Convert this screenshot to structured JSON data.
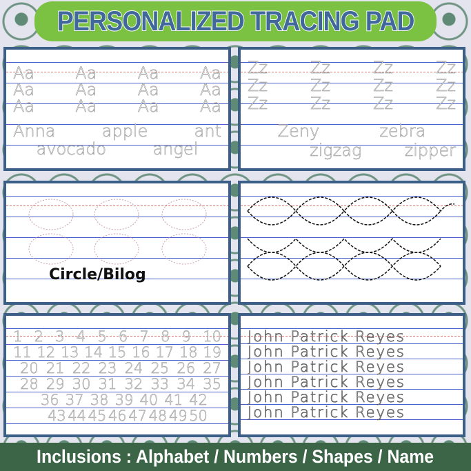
{
  "title": "PERSONALIZED TRACING PAD",
  "panels": {
    "alphabet_a": {
      "rows": [
        [
          "Aa",
          "Aa",
          "Aa",
          "Aa"
        ],
        [
          "Aa",
          "Aa",
          "Aa",
          "Aa"
        ],
        [
          "Aa",
          "Aa",
          "Aa",
          "Aa"
        ]
      ],
      "words": [
        [
          "Anna",
          "apple",
          "ant"
        ],
        [
          "avocado",
          "angel"
        ]
      ]
    },
    "alphabet_z": {
      "rows": [
        [
          "Zz",
          "Zz",
          "Zz",
          "Zz"
        ],
        [
          "Zz",
          "Zz",
          "Zz",
          "Zz"
        ],
        [
          "Zz",
          "Zz",
          "Zz",
          "Zz"
        ]
      ],
      "words": [
        [
          "Zeny",
          "zebra"
        ],
        [
          "zigzag",
          "zipper"
        ]
      ]
    },
    "circle": {
      "label": "Circle/Bilog"
    },
    "numbers": {
      "rows": [
        [
          "1",
          "2",
          "3",
          "4",
          "5",
          "6",
          "7",
          "8",
          "9",
          "10"
        ],
        [
          "11",
          "12",
          "13",
          "14",
          "15",
          "16",
          "17",
          "18",
          "19"
        ],
        [
          "20",
          "21",
          "22",
          "23",
          "24",
          "25",
          "26",
          "27"
        ],
        [
          "28",
          "29",
          "30",
          "31",
          "32",
          "33",
          "34",
          "35"
        ],
        [
          "36",
          "37",
          "38",
          "39",
          "40",
          "41",
          "42"
        ],
        [
          "43",
          "44",
          "45",
          "46",
          "47",
          "48",
          "49",
          "50"
        ]
      ]
    },
    "name": {
      "rows": [
        "John Patrick Reyes",
        "John Patrick Reyes",
        "John Patrick Reyes",
        "John Patrick Reyes",
        "John Patrick Reyes",
        "John Patrick Reyes"
      ]
    }
  },
  "colors": {
    "title_bg": "#7cc242",
    "title_text": "#40689a",
    "frame": "#3b5f86",
    "banner": "#3c6447"
  },
  "footer": "Inclusions : Alphabet / Numbers / Shapes / Name"
}
